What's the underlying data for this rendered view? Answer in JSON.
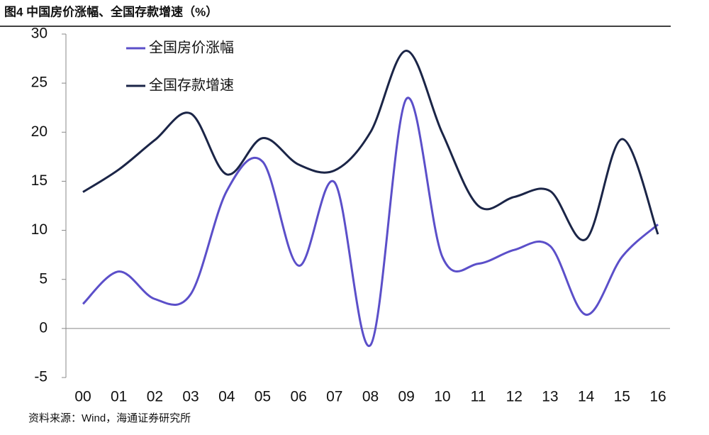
{
  "chart_data": {
    "type": "line",
    "title": "图4  中国房价涨幅、全国存款增速（%）",
    "source": "资料来源：Wind，海通证券研究所",
    "categories": [
      "00",
      "01",
      "02",
      "03",
      "04",
      "05",
      "06",
      "07",
      "08",
      "09",
      "10",
      "11",
      "12",
      "13",
      "14",
      "15",
      "16"
    ],
    "series": [
      {
        "name": "全国房价涨幅",
        "color": "#5b4fc9",
        "values": [
          2.5,
          5.8,
          3.0,
          3.5,
          14.0,
          17.0,
          6.4,
          14.9,
          -1.7,
          23.4,
          7.3,
          6.6,
          8.0,
          8.4,
          1.4,
          7.3,
          10.6
        ]
      },
      {
        "name": "全国存款增速",
        "color": "#1b2547",
        "values": [
          13.9,
          16.2,
          19.2,
          21.9,
          15.7,
          19.4,
          16.7,
          16.1,
          20.0,
          28.3,
          19.9,
          12.5,
          13.4,
          14.0,
          9.1,
          19.3,
          9.6
        ]
      }
    ],
    "ylim": [
      -5,
      30
    ],
    "yticks": [
      -5,
      0,
      5,
      10,
      15,
      20,
      25,
      30
    ],
    "grid": false,
    "legend": "top-left"
  }
}
